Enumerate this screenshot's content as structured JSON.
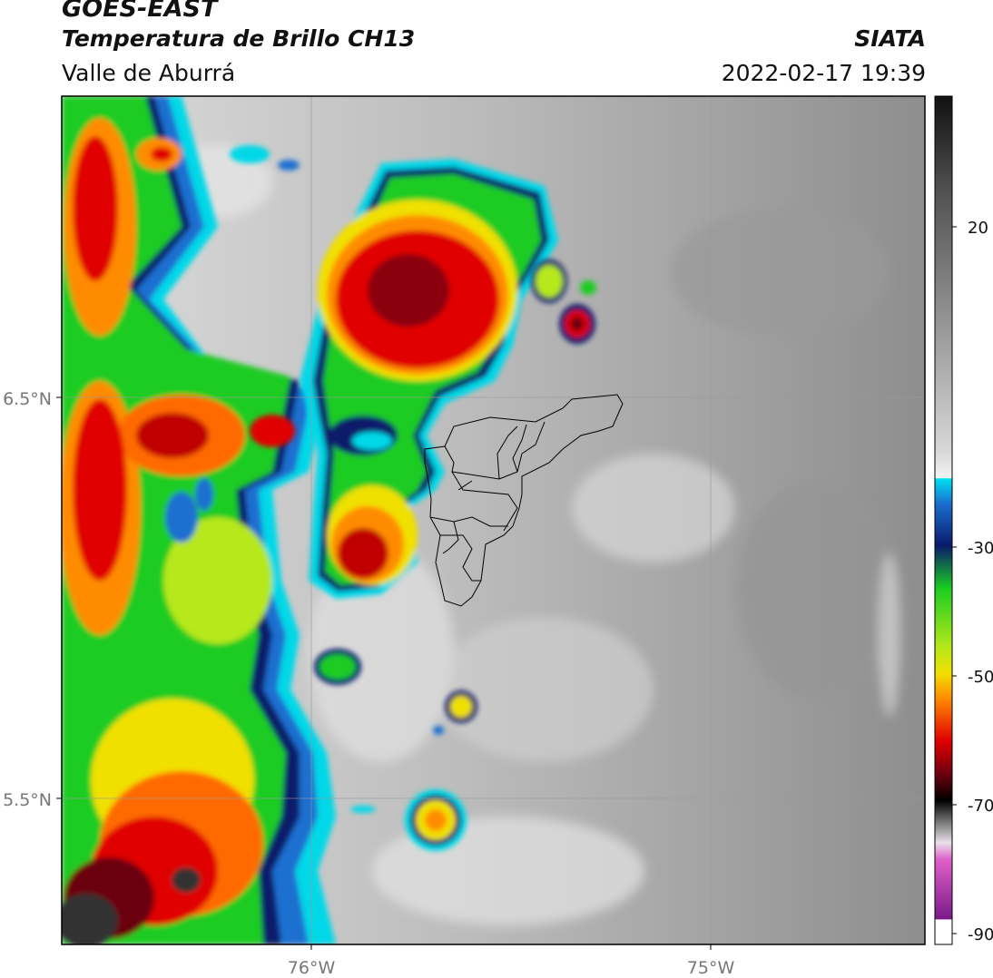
{
  "header": {
    "satellite": "GOES-EAST",
    "product": "Temperatura de Brillo CH13",
    "region": "Valle de Aburrá",
    "agency": "SIATA",
    "datetime": "2022-02-17 19:39"
  },
  "map": {
    "lat_ticks": [
      "6.5°N",
      "5.5°N"
    ],
    "lon_ticks": [
      "76°W",
      "75°W"
    ],
    "extent": {
      "lon_min": -76.62,
      "lon_max": -74.46,
      "lat_min": 5.14,
      "lat_max": 7.26
    },
    "gridlines": true,
    "boundary": "Valle de Aburrá municipalities outline"
  },
  "colorbar": {
    "ticks": [
      "20",
      "-30",
      "-50",
      "-70",
      "-90"
    ],
    "range": [
      -92,
      40
    ],
    "colors": {
      "warm_gray": "#8a8a8a",
      "white": "#f2f2f2",
      "cyan": "#00d8e8",
      "blue": "#1a4fb0",
      "navy": "#0a1a6a",
      "green": "#1acc22",
      "yellow": "#f0f000",
      "orange": "#ff8c00",
      "red": "#e00000",
      "dark_red": "#6a0010",
      "black": "#000000",
      "pink": "#e060c8",
      "purple": "#7a1a8a"
    }
  }
}
